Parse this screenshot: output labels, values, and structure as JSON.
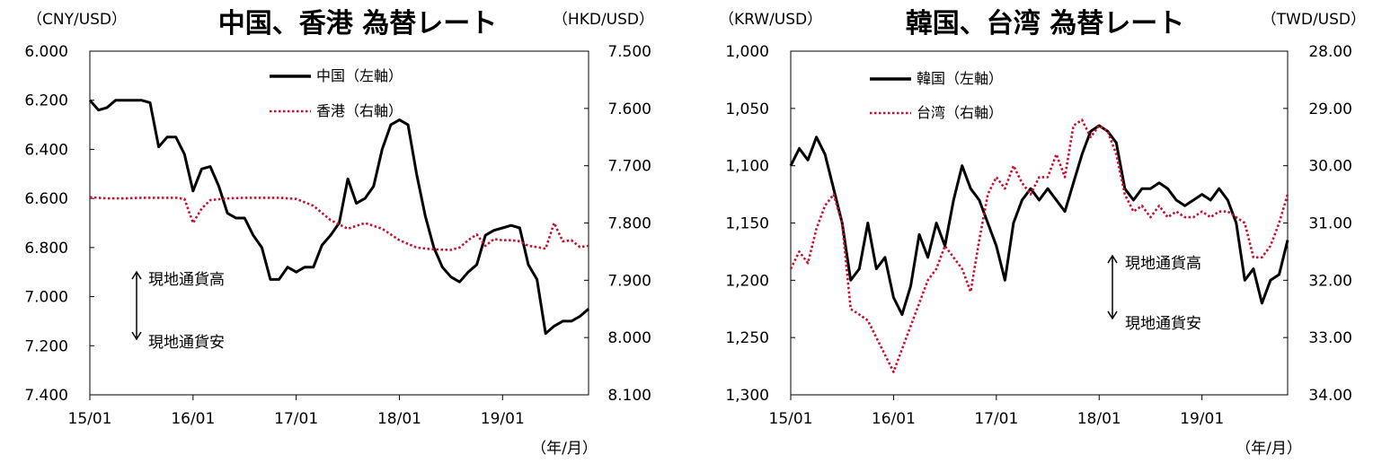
{
  "chart_data": [
    {
      "type": "line",
      "title": "中国、香港 為替レート",
      "left_unit": "（CNY/USD）",
      "right_unit": "（HKD/USD）",
      "x_unit": "（年/月）",
      "x_ticks": [
        "15/01",
        "16/01",
        "17/01",
        "18/01",
        "19/01"
      ],
      "y_left_ticks": [
        "6.000",
        "6.200",
        "6.400",
        "6.600",
        "6.800",
        "7.000",
        "7.200",
        "7.400"
      ],
      "y_right_ticks": [
        "7.500",
        "7.600",
        "7.700",
        "7.800",
        "7.900",
        "8.000",
        "8.100"
      ],
      "y_left_range": [
        6.0,
        7.4
      ],
      "y_right_range": [
        7.5,
        8.1
      ],
      "y_inverted": true,
      "x_range": [
        0,
        58
      ],
      "annotation_up": "現地通貨高",
      "annotation_down": "現地通貨安",
      "series": [
        {
          "name": "中国（左軸）",
          "axis": "left",
          "style": "solid",
          "color": "#000000",
          "x": [
            0,
            1,
            2,
            3,
            4,
            5,
            6,
            7,
            8,
            9,
            10,
            11,
            12,
            13,
            14,
            15,
            16,
            17,
            18,
            19,
            20,
            21,
            22,
            23,
            24,
            25,
            26,
            27,
            28,
            29,
            30,
            31,
            32,
            33,
            34,
            35,
            36,
            37,
            38,
            39,
            40,
            41,
            42,
            43,
            44,
            45,
            46,
            47,
            48,
            49,
            50,
            51,
            52,
            53,
            54,
            55,
            56,
            57,
            58
          ],
          "values": [
            6.2,
            6.24,
            6.23,
            6.2,
            6.2,
            6.2,
            6.2,
            6.21,
            6.39,
            6.35,
            6.35,
            6.42,
            6.57,
            6.48,
            6.47,
            6.55,
            6.66,
            6.68,
            6.68,
            6.75,
            6.8,
            6.93,
            6.93,
            6.88,
            6.9,
            6.88,
            6.88,
            6.79,
            6.75,
            6.7,
            6.52,
            6.62,
            6.6,
            6.55,
            6.4,
            6.3,
            6.28,
            6.3,
            6.5,
            6.67,
            6.8,
            6.88,
            6.92,
            6.94,
            6.9,
            6.87,
            6.75,
            6.73,
            6.72,
            6.71,
            6.72,
            6.87,
            6.93,
            7.15,
            7.12,
            7.1,
            7.1,
            7.08,
            7.05
          ]
        },
        {
          "name": "香港（右軸）",
          "axis": "right",
          "style": "dotted",
          "color": "#c8102e",
          "x": [
            0,
            2,
            4,
            6,
            8,
            10,
            11,
            12,
            13,
            14,
            16,
            18,
            20,
            22,
            24,
            26,
            28,
            30,
            32,
            34,
            36,
            38,
            40,
            42,
            43,
            44,
            45,
            46,
            47,
            48,
            49,
            50,
            51,
            52,
            53,
            54,
            55,
            56,
            57,
            58
          ],
          "values": [
            7.755,
            7.757,
            7.757,
            7.756,
            7.756,
            7.756,
            7.758,
            7.8,
            7.775,
            7.76,
            7.757,
            7.756,
            7.756,
            7.756,
            7.758,
            7.77,
            7.795,
            7.81,
            7.8,
            7.81,
            7.83,
            7.843,
            7.846,
            7.847,
            7.843,
            7.83,
            7.82,
            7.84,
            7.828,
            7.83,
            7.83,
            7.832,
            7.84,
            7.842,
            7.845,
            7.8,
            7.832,
            7.83,
            7.842,
            7.84
          ]
        }
      ]
    },
    {
      "type": "line",
      "title": "韓国、台湾 為替レート",
      "left_unit": "（KRW/USD）",
      "right_unit": "（TWD/USD）",
      "x_unit": "（年/月）",
      "x_ticks": [
        "15/01",
        "16/01",
        "17/01",
        "18/01",
        "19/01"
      ],
      "y_left_ticks": [
        "1,000",
        "1,050",
        "1,100",
        "1,150",
        "1,200",
        "1,250",
        "1,300"
      ],
      "y_right_ticks": [
        "28.00",
        "29.00",
        "30.00",
        "31.00",
        "32.00",
        "33.00",
        "34.00"
      ],
      "y_left_range": [
        1000,
        1300
      ],
      "y_right_range": [
        28,
        34
      ],
      "y_inverted": true,
      "x_range": [
        0,
        58
      ],
      "annotation_up": "現地通貨高",
      "annotation_down": "現地通貨安",
      "series": [
        {
          "name": "韓国（左軸）",
          "axis": "left",
          "style": "solid",
          "color": "#000000",
          "x": [
            0,
            1,
            2,
            3,
            4,
            5,
            6,
            7,
            8,
            9,
            10,
            11,
            12,
            13,
            14,
            15,
            16,
            17,
            18,
            19,
            20,
            21,
            22,
            23,
            24,
            25,
            26,
            27,
            28,
            29,
            30,
            31,
            32,
            33,
            34,
            35,
            36,
            37,
            38,
            39,
            40,
            41,
            42,
            43,
            44,
            45,
            46,
            47,
            48,
            49,
            50,
            51,
            52,
            53,
            54,
            55,
            56,
            57,
            58
          ],
          "values": [
            1100,
            1085,
            1095,
            1075,
            1090,
            1120,
            1150,
            1200,
            1190,
            1150,
            1190,
            1180,
            1215,
            1230,
            1205,
            1160,
            1180,
            1150,
            1170,
            1130,
            1100,
            1120,
            1130,
            1150,
            1170,
            1200,
            1150,
            1130,
            1120,
            1130,
            1120,
            1130,
            1140,
            1115,
            1090,
            1070,
            1065,
            1070,
            1080,
            1120,
            1130,
            1120,
            1120,
            1115,
            1120,
            1130,
            1135,
            1130,
            1125,
            1130,
            1120,
            1130,
            1150,
            1200,
            1190,
            1220,
            1200,
            1195,
            1165
          ]
        },
        {
          "name": "台湾（右軸）",
          "axis": "right",
          "style": "dotted",
          "color": "#c8102e",
          "x": [
            0,
            1,
            2,
            3,
            4,
            5,
            6,
            7,
            8,
            9,
            10,
            11,
            12,
            13,
            14,
            15,
            16,
            17,
            18,
            19,
            20,
            21,
            22,
            23,
            24,
            25,
            26,
            27,
            28,
            29,
            30,
            31,
            32,
            33,
            34,
            35,
            36,
            37,
            38,
            39,
            40,
            41,
            42,
            43,
            44,
            45,
            46,
            47,
            48,
            49,
            50,
            51,
            52,
            53,
            54,
            55,
            56,
            57,
            58
          ],
          "values": [
            31.8,
            31.5,
            31.7,
            31.1,
            30.7,
            30.5,
            31.0,
            32.5,
            32.6,
            32.7,
            33.0,
            33.3,
            33.6,
            33.2,
            32.8,
            32.4,
            32.0,
            31.8,
            31.4,
            31.6,
            31.8,
            32.2,
            31.3,
            30.5,
            30.2,
            30.4,
            30.0,
            30.3,
            30.5,
            30.2,
            30.2,
            29.8,
            30.2,
            29.3,
            29.2,
            29.5,
            29.3,
            29.4,
            29.8,
            30.5,
            30.8,
            30.7,
            30.9,
            30.7,
            30.9,
            30.8,
            30.9,
            30.9,
            30.8,
            30.9,
            30.8,
            30.8,
            30.9,
            31.0,
            31.6,
            31.6,
            31.4,
            31.0,
            30.5
          ]
        }
      ]
    }
  ]
}
